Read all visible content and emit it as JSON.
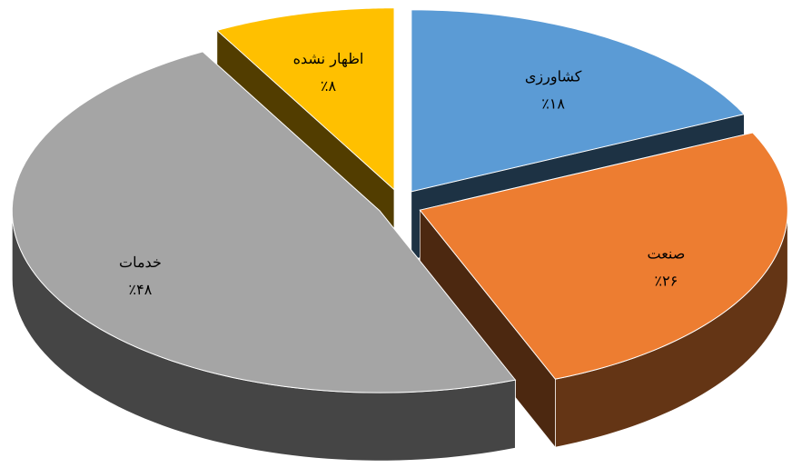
{
  "chart_data": {
    "type": "pie3d",
    "categories": [
      "کشاورزی",
      "صنعت",
      "خدمات",
      "اظهار نشده"
    ],
    "values": [
      18,
      26,
      48,
      8
    ],
    "value_labels": [
      "٪۱۸",
      "٪۲۶",
      "٪۴۸",
      "٪۸"
    ],
    "colors": [
      "#5b9bd5",
      "#ed7d31",
      "#a5a5a5",
      "#ffc000"
    ]
  }
}
